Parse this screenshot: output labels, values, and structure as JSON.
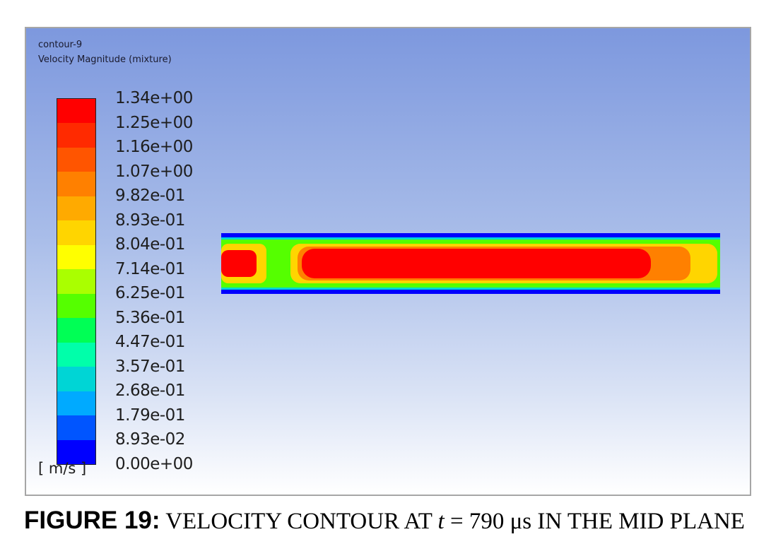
{
  "figure": {
    "contour_name": "contour-9",
    "quantity": "Velocity Magnitude (mixture)",
    "unit": "[ m/s ]",
    "caption": {
      "label": "FIGURE 19:",
      "text_before": "VELOCITY CONTOUR AT",
      "variable": "t",
      "text_after": "= 790 μs IN THE MID PLANE"
    }
  },
  "colorbar": {
    "ticks": [
      "1.34e+00",
      "1.25e+00",
      "1.16e+00",
      "1.07e+00",
      "9.82e-01",
      "8.93e-01",
      "8.04e-01",
      "7.14e-01",
      "6.25e-01",
      "5.36e-01",
      "4.47e-01",
      "3.57e-01",
      "2.68e-01",
      "1.79e-01",
      "8.93e-02",
      "0.00e+00"
    ],
    "colors": [
      "#ff0000",
      "#ff2a00",
      "#ff5500",
      "#ff8000",
      "#ffaa00",
      "#ffd500",
      "#ffff00",
      "#aaff00",
      "#55ff00",
      "#00ff55",
      "#00ffaa",
      "#00d5d5",
      "#00aaff",
      "#0055ff",
      "#0000ff"
    ]
  },
  "channel": {
    "colors": {
      "wall": "#0000ff",
      "edge": "#00d5d5",
      "mid": "#55ff00",
      "plug_outer": "#ffd500",
      "plug_mid": "#ff8000",
      "core": "#ff0000"
    }
  }
}
